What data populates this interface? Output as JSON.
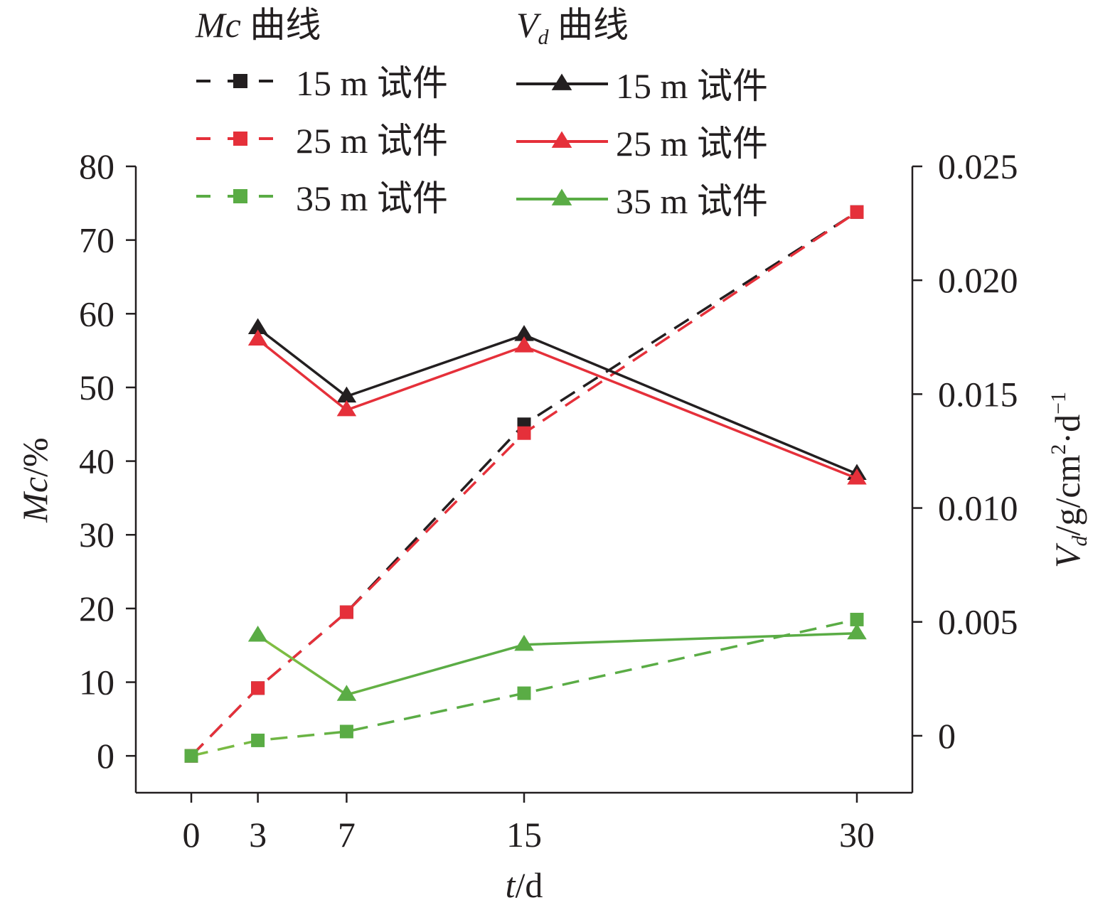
{
  "chart_data": {
    "type": "line",
    "x": [
      0,
      3,
      7,
      15,
      30
    ],
    "xticks": [
      "0",
      "3",
      "7",
      "15",
      "30"
    ],
    "xlabel": {
      "var": "t",
      "unit": "/d"
    },
    "xlim": [
      -2.5,
      32.5
    ],
    "left_axis": {
      "label": {
        "var": "Mc",
        "unit": "/%"
      },
      "ylim": [
        -5,
        80
      ],
      "ticks": [
        "0",
        "10",
        "20",
        "30",
        "40",
        "50",
        "60",
        "70",
        "80"
      ],
      "tick_values": [
        0,
        10,
        20,
        30,
        40,
        50,
        60,
        70,
        80
      ]
    },
    "right_axis": {
      "label": {
        "var": "V",
        "sub": "d",
        "unit": "/g/cm",
        "sup1": "2",
        "mid": "·d",
        "sup2": "−1"
      },
      "ylim": [
        -0.0025,
        0.025
      ],
      "ticks": [
        "0",
        "0.005",
        "0.010",
        "0.015",
        "0.020",
        "0.025"
      ],
      "tick_values": [
        0,
        0.005,
        0.01,
        0.015,
        0.02,
        0.025
      ]
    },
    "legend": {
      "placement": "top",
      "group_mc_title": {
        "var": "Mc",
        "text": " 曲线"
      },
      "group_vd_title": {
        "var": "V",
        "sub": "d",
        "text": " 曲线"
      }
    },
    "series": [
      {
        "name": "15 m 试件",
        "group": "Mc",
        "axis": "left",
        "marker": "square",
        "dashed": true,
        "color": "#231f20",
        "fade": "#231f20",
        "x": [
          0,
          3,
          7,
          15,
          30
        ],
        "values": [
          0,
          9.2,
          19.5,
          45,
          73.8
        ]
      },
      {
        "name": "25 m 试件",
        "group": "Mc",
        "axis": "left",
        "marker": "square",
        "dashed": true,
        "color": "#e5303a",
        "fade": "#e5303a",
        "x": [
          0,
          3,
          7,
          15,
          30
        ],
        "values": [
          0,
          9.2,
          19.5,
          43.8,
          73.8
        ]
      },
      {
        "name": "35 m 试件",
        "group": "Mc",
        "axis": "left",
        "marker": "square",
        "dashed": true,
        "color": "#5aac45",
        "fade": "#eef13a",
        "x": [
          0,
          3,
          7,
          15,
          30
        ],
        "values": [
          0,
          2.1,
          3.3,
          8.5,
          18.5
        ]
      },
      {
        "name": "15 m 试件",
        "group": "Vd",
        "axis": "right",
        "marker": "triangle",
        "dashed": false,
        "color": "#231f20",
        "fade": "#231f20",
        "x": [
          3,
          7,
          15,
          30
        ],
        "values": [
          0.0179,
          0.0149,
          0.0176,
          0.0115
        ]
      },
      {
        "name": "25 m 试件",
        "group": "Vd",
        "axis": "right",
        "marker": "triangle",
        "dashed": false,
        "color": "#e5303a",
        "fade": "#e5303a",
        "x": [
          3,
          7,
          15,
          30
        ],
        "values": [
          0.0174,
          0.0143,
          0.0171,
          0.0113
        ]
      },
      {
        "name": "35 m 试件",
        "group": "Vd",
        "axis": "right",
        "marker": "triangle",
        "dashed": false,
        "color": "#5aac45",
        "fade": "#eef13a",
        "x": [
          3,
          7,
          15,
          30
        ],
        "values": [
          0.0044,
          0.0018,
          0.004,
          0.0045
        ]
      }
    ]
  }
}
